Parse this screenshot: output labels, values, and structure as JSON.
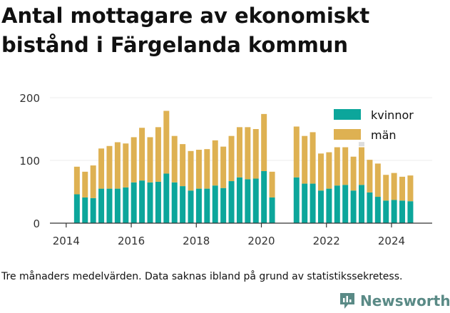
{
  "title": "Antal mottagare av ekonomiskt bistånd i Färgelanda kommun",
  "footnote": "Tre månaders medelvärden. Data saknas ibland på grund av statistikssekretess.",
  "brand": "Newsworthy",
  "colors": {
    "kvinnor": "#0ca69b",
    "man": "#deb152",
    "axis": "#333333",
    "grid": "#ececec"
  },
  "chart_data": {
    "type": "bar",
    "stacked": true,
    "title": "Antal mottagare av ekonomiskt bistånd i Färgelanda kommun",
    "xlabel": "",
    "ylabel": "",
    "ylim": [
      0,
      200
    ],
    "yticks": [
      0,
      100,
      200
    ],
    "xticks": [
      "2014",
      "2016",
      "2018",
      "2020",
      "2022",
      "2024"
    ],
    "xrange": [
      2013.5,
      2025.25
    ],
    "grid": true,
    "legend_position": "top-right",
    "x": [
      2014.33,
      2014.58,
      2014.83,
      2015.08,
      2015.33,
      2015.58,
      2015.83,
      2016.08,
      2016.33,
      2016.58,
      2016.83,
      2017.08,
      2017.33,
      2017.58,
      2017.83,
      2018.08,
      2018.33,
      2018.58,
      2018.83,
      2019.08,
      2019.33,
      2019.58,
      2019.83,
      2020.08,
      2020.33,
      2021.08,
      2021.33,
      2021.58,
      2021.83,
      2022.08,
      2022.33,
      2022.58,
      2022.83,
      2023.08,
      2023.33,
      2023.58,
      2023.83,
      2024.08,
      2024.33,
      2024.58
    ],
    "series": [
      {
        "name": "kvinnor",
        "values": [
          46,
          41,
          40,
          55,
          55,
          55,
          57,
          65,
          68,
          65,
          66,
          79,
          65,
          59,
          52,
          55,
          55,
          60,
          56,
          67,
          73,
          70,
          71,
          83,
          41,
          73,
          63,
          63,
          52,
          55,
          60,
          61,
          52,
          61,
          49,
          42,
          36,
          37,
          36,
          35
        ]
      },
      {
        "name": "män",
        "values": [
          44,
          41,
          52,
          64,
          68,
          74,
          70,
          72,
          84,
          72,
          87,
          100,
          74,
          67,
          63,
          62,
          63,
          72,
          66,
          72,
          80,
          83,
          79,
          91,
          41,
          81,
          76,
          82,
          59,
          58,
          61,
          60,
          54,
          60,
          52,
          53,
          41,
          43,
          38,
          41
        ]
      }
    ],
    "missing_points": [
      {
        "x": 2023.08,
        "y": 126
      }
    ]
  }
}
